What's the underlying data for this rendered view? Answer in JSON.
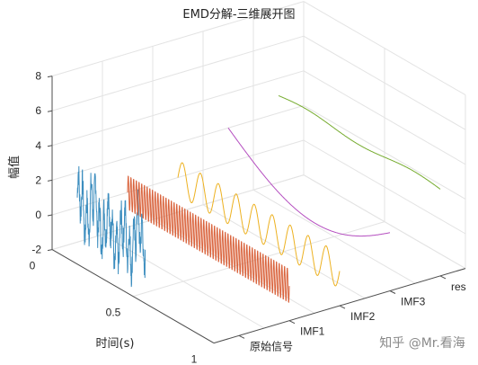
{
  "chart_data": {
    "type": "line",
    "title": "EMD分解-三维展开图",
    "xlabel": "时间(s)",
    "ylabel": "",
    "zlabel": "幅值",
    "x_ticks": [
      "0",
      "0.5",
      "1"
    ],
    "xlim": [
      0,
      1
    ],
    "z_ticks": [
      "-2",
      "0",
      "2",
      "4",
      "6",
      "8"
    ],
    "zlim": [
      -2,
      8
    ],
    "categories": [
      "原始信号",
      "IMF1",
      "IMF2",
      "IMF3",
      "res"
    ],
    "grid": true,
    "series": [
      {
        "name": "原始信号",
        "color": "#3d8ebf",
        "x_range": [
          0,
          0.42
        ],
        "baseline": 0,
        "shape": "noisy oscillation, amplitude about 2"
      },
      {
        "name": "IMF1",
        "color": "#d9623b",
        "x_range": [
          0,
          1
        ],
        "baseline": 0,
        "shape": "high-frequency oscillation, amplitude about 1"
      },
      {
        "name": "IMF2",
        "color": "#edb120",
        "x_range": [
          0,
          1
        ],
        "baseline": 0,
        "shape": "medium-frequency oscillation, amplitude about 1"
      },
      {
        "name": "IMF3",
        "color": "#b54fc0",
        "x_range": [
          0,
          1
        ],
        "baseline": 0,
        "shape": "slow decaying curve from about 2 to -0.5"
      },
      {
        "name": "res",
        "color": "#77ac30",
        "x_range": [
          0,
          1
        ],
        "baseline": 3,
        "shape": "nearly flat trend around 3"
      }
    ]
  },
  "watermark": "知乎 @Mr.看海"
}
